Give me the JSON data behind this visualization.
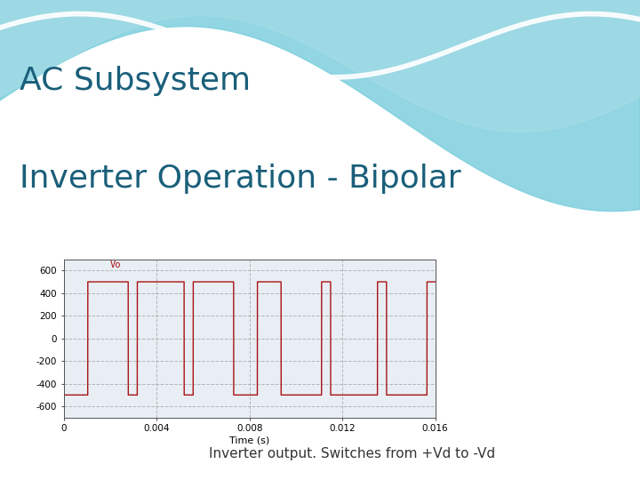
{
  "title_line1": "AC Subsystem",
  "title_line2": "Inverter Operation - Bipolar",
  "subtitle": "Inverter output. Switches from +Vd to -Vd",
  "vo_label": "Vo",
  "xlabel": "Time (s)",
  "ylim": [
    -700,
    700
  ],
  "xlim": [
    0,
    0.016
  ],
  "yticks": [
    -600,
    -400,
    -200,
    0,
    200,
    400,
    600
  ],
  "xticks": [
    0,
    0.004,
    0.008,
    0.012,
    0.016
  ],
  "Vd": 500,
  "line_color": "#aa1111",
  "grid_color": "#888888",
  "plot_bg_color": "#e8eef4",
  "title_color": "#1a5f7a",
  "subtitle_color": "#333333",
  "frequency": 60,
  "carrier_ratio": 7,
  "modulation_index": 0.75,
  "header_wave_color1": "#7ecfdd",
  "header_wave_color2": "#a8dde8",
  "header_base_color": "#d8eef5",
  "slide_bg": "#ffffff"
}
